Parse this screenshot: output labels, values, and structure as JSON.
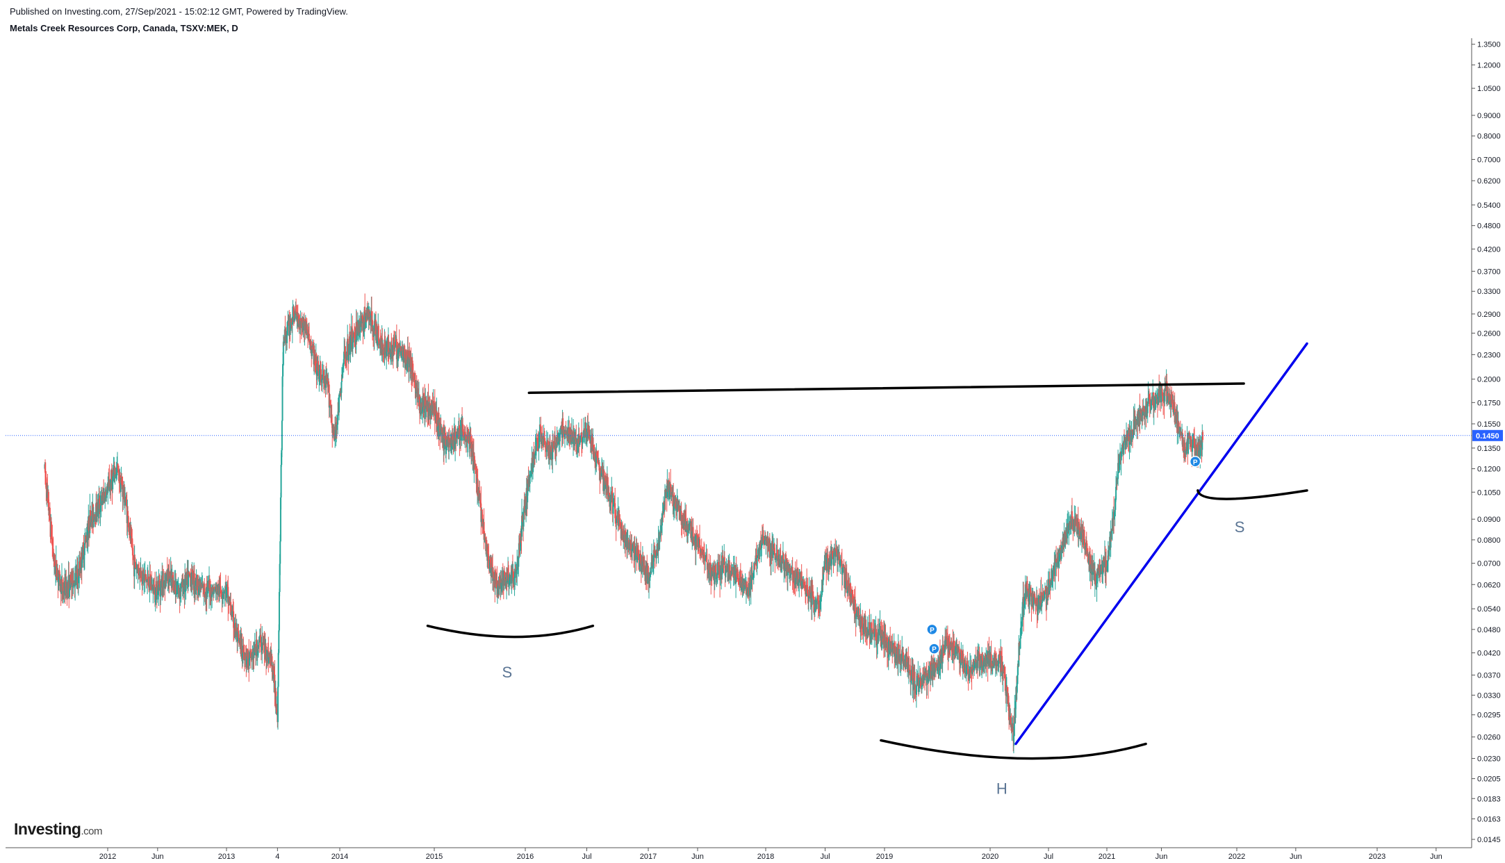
{
  "header": {
    "published": "Published on Investing.com, 27/Sep/2021 - 15:02:12 GMT, Powered by TradingView.",
    "symbol": "Metals Creek Resources Corp, Canada, TSXV:MEK, D"
  },
  "logo": {
    "text": "Investing",
    "suffix": ".com"
  },
  "colors": {
    "up": "#26a69a",
    "down": "#ef5350",
    "price_line": "#2962ff",
    "trendline": "#0000ee",
    "pattern": "#000000",
    "marker": "#1e88e5"
  },
  "chart_data": {
    "type": "candlestick",
    "scale": "log",
    "ylim": [
      0.0135,
      1.38
    ],
    "y_ticks": [
      "1.3500",
      "1.2000",
      "1.0500",
      "0.9000",
      "0.8000",
      "0.7000",
      "0.6200",
      "0.5400",
      "0.4800",
      "0.4200",
      "0.3700",
      "0.3300",
      "0.2900",
      "0.2600",
      "0.2300",
      "0.2000",
      "0.1750",
      "0.1550",
      "0.1350",
      "0.1200",
      "0.1050",
      "0.0900",
      "0.0800",
      "0.0700",
      "0.0620",
      "0.0540",
      "0.0480",
      "0.0420",
      "0.0370",
      "0.0330",
      "0.0295",
      "0.0260",
      "0.0230",
      "0.0205",
      "0.0183",
      "0.0163",
      "0.0145"
    ],
    "x_ticks": [
      {
        "label": "2012",
        "t": 2012.0
      },
      {
        "label": "Jun",
        "t": 2012.42
      },
      {
        "label": "2013",
        "t": 2013.0
      },
      {
        "label": "4",
        "t": 2013.45
      },
      {
        "label": "2014",
        "t": 2014.0
      },
      {
        "label": "2015",
        "t": 2015.0
      },
      {
        "label": "2016",
        "t": 2016.0
      },
      {
        "label": "Jul",
        "t": 2016.5
      },
      {
        "label": "2017",
        "t": 2017.0
      },
      {
        "label": "Jun",
        "t": 2017.42
      },
      {
        "label": "2018",
        "t": 2018.0
      },
      {
        "label": "Jul",
        "t": 2018.5
      },
      {
        "label": "2019",
        "t": 2019.0
      },
      {
        "label": "2020",
        "t": 2020.0
      },
      {
        "label": "Jul",
        "t": 2020.5
      },
      {
        "label": "2021",
        "t": 2021.0
      },
      {
        "label": "Jun",
        "t": 2021.42
      },
      {
        "label": "2022",
        "t": 2022.0
      },
      {
        "label": "Jun",
        "t": 2022.42
      },
      {
        "label": "2023",
        "t": 2023.0
      },
      {
        "label": "Jun",
        "t": 2023.42
      }
    ],
    "current_price": "0.1450",
    "price_path": [
      [
        2011.47,
        0.12
      ],
      [
        2011.55,
        0.07
      ],
      [
        2011.62,
        0.06
      ],
      [
        2011.75,
        0.065
      ],
      [
        2011.85,
        0.09
      ],
      [
        2011.95,
        0.1
      ],
      [
        2012.02,
        0.11
      ],
      [
        2012.08,
        0.12
      ],
      [
        2012.15,
        0.1
      ],
      [
        2012.22,
        0.07
      ],
      [
        2012.3,
        0.065
      ],
      [
        2012.4,
        0.06
      ],
      [
        2012.5,
        0.065
      ],
      [
        2012.6,
        0.06
      ],
      [
        2012.7,
        0.065
      ],
      [
        2012.8,
        0.06
      ],
      [
        2012.9,
        0.06
      ],
      [
        2013.0,
        0.06
      ],
      [
        2013.1,
        0.045
      ],
      [
        2013.2,
        0.04
      ],
      [
        2013.3,
        0.045
      ],
      [
        2013.4,
        0.04
      ],
      [
        2013.45,
        0.03
      ],
      [
        2013.5,
        0.25
      ],
      [
        2013.6,
        0.29
      ],
      [
        2013.7,
        0.27
      ],
      [
        2013.8,
        0.21
      ],
      [
        2013.9,
        0.19
      ],
      [
        2013.95,
        0.14
      ],
      [
        2014.05,
        0.23
      ],
      [
        2014.2,
        0.27
      ],
      [
        2014.3,
        0.29
      ],
      [
        2014.45,
        0.24
      ],
      [
        2014.6,
        0.24
      ],
      [
        2014.75,
        0.22
      ],
      [
        2014.85,
        0.17
      ],
      [
        2015.0,
        0.17
      ],
      [
        2015.1,
        0.14
      ],
      [
        2015.2,
        0.14
      ],
      [
        2015.3,
        0.15
      ],
      [
        2015.4,
        0.14
      ],
      [
        2015.5,
        0.1
      ],
      [
        2015.6,
        0.07
      ],
      [
        2015.7,
        0.06
      ],
      [
        2015.8,
        0.065
      ],
      [
        2015.9,
        0.065
      ],
      [
        2015.97,
        0.09
      ],
      [
        2016.05,
        0.12
      ],
      [
        2016.12,
        0.15
      ],
      [
        2016.2,
        0.13
      ],
      [
        2016.3,
        0.15
      ],
      [
        2016.4,
        0.14
      ],
      [
        2016.5,
        0.15
      ],
      [
        2016.6,
        0.12
      ],
      [
        2016.7,
        0.1
      ],
      [
        2016.8,
        0.08
      ],
      [
        2016.9,
        0.075
      ],
      [
        2017.0,
        0.065
      ],
      [
        2017.1,
        0.08
      ],
      [
        2017.15,
        0.11
      ],
      [
        2017.25,
        0.095
      ],
      [
        2017.35,
        0.085
      ],
      [
        2017.45,
        0.075
      ],
      [
        2017.55,
        0.065
      ],
      [
        2017.65,
        0.07
      ],
      [
        2017.75,
        0.065
      ],
      [
        2017.85,
        0.06
      ],
      [
        2017.97,
        0.08
      ],
      [
        2018.05,
        0.075
      ],
      [
        2018.15,
        0.07
      ],
      [
        2018.25,
        0.065
      ],
      [
        2018.35,
        0.06
      ],
      [
        2018.45,
        0.055
      ],
      [
        2018.5,
        0.07
      ],
      [
        2018.6,
        0.075
      ],
      [
        2018.7,
        0.06
      ],
      [
        2018.8,
        0.05
      ],
      [
        2018.9,
        0.047
      ],
      [
        2019.0,
        0.045
      ],
      [
        2019.1,
        0.042
      ],
      [
        2019.2,
        0.04
      ],
      [
        2019.3,
        0.035
      ],
      [
        2019.4,
        0.037
      ],
      [
        2019.5,
        0.04
      ],
      [
        2019.6,
        0.045
      ],
      [
        2019.7,
        0.042
      ],
      [
        2019.8,
        0.038
      ],
      [
        2019.9,
        0.04
      ],
      [
        2020.0,
        0.04
      ],
      [
        2020.1,
        0.04
      ],
      [
        2020.2,
        0.026
      ],
      [
        2020.25,
        0.045
      ],
      [
        2020.3,
        0.06
      ],
      [
        2020.4,
        0.055
      ],
      [
        2020.5,
        0.06
      ],
      [
        2020.6,
        0.075
      ],
      [
        2020.7,
        0.09
      ],
      [
        2020.8,
        0.08
      ],
      [
        2020.9,
        0.065
      ],
      [
        2021.0,
        0.07
      ],
      [
        2021.05,
        0.09
      ],
      [
        2021.1,
        0.13
      ],
      [
        2021.2,
        0.15
      ],
      [
        2021.3,
        0.17
      ],
      [
        2021.4,
        0.18
      ],
      [
        2021.45,
        0.19
      ],
      [
        2021.5,
        0.175
      ],
      [
        2021.55,
        0.15
      ],
      [
        2021.6,
        0.135
      ],
      [
        2021.65,
        0.14
      ],
      [
        2021.7,
        0.13
      ],
      [
        2021.74,
        0.145
      ]
    ],
    "markers": [
      {
        "t": 2019.45,
        "price": 0.048
      },
      {
        "t": 2019.47,
        "price": 0.043
      },
      {
        "t": 2021.68,
        "price": 0.125
      }
    ],
    "resistance_line": {
      "from": [
        2016.03,
        0.185
      ],
      "to": [
        2022.05,
        0.195
      ]
    },
    "trendline": {
      "from": [
        2020.22,
        0.025
      ],
      "to": [
        2022.5,
        0.245
      ]
    },
    "arcs": [
      {
        "from": [
          2014.93,
          0.049
        ],
        "mid": [
          2015.88,
          0.046
        ],
        "to": [
          2016.55,
          0.049
        ]
      },
      {
        "from": [
          2018.97,
          0.0255
        ],
        "mid": [
          2020.3,
          0.023
        ],
        "to": [
          2021.3,
          0.025
        ]
      },
      {
        "from": [
          2021.7,
          0.106
        ],
        "mid": [
          2021.92,
          0.101
        ],
        "to": [
          2022.5,
          0.106
        ]
      }
    ],
    "annotations": [
      {
        "text": "S",
        "t": 2015.8,
        "price": 0.0365
      },
      {
        "text": "H",
        "t": 2020.1,
        "price": 0.0188
      },
      {
        "text": "S",
        "t": 2022.02,
        "price": 0.0835
      }
    ]
  }
}
